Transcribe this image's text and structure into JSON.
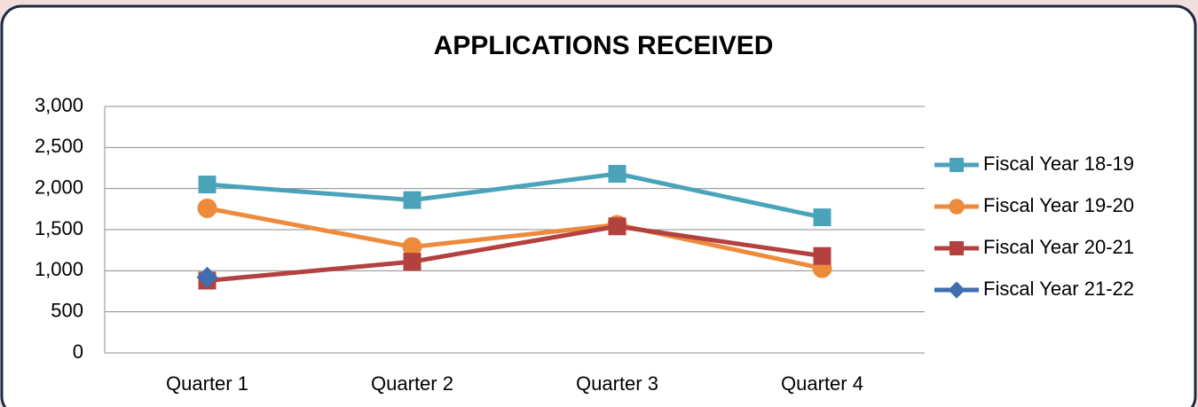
{
  "chart_data": {
    "type": "line",
    "title": "APPLICATIONS RECEIVED",
    "categories": [
      "Quarter 1",
      "Quarter 2",
      "Quarter 3",
      "Quarter 4"
    ],
    "series": [
      {
        "name": "Fiscal Year 18-19",
        "color": "#4aa3b9",
        "marker": "square",
        "values": [
          2050,
          1860,
          2180,
          1650
        ]
      },
      {
        "name": "Fiscal Year 19-20",
        "color": "#ec8b3c",
        "marker": "circle",
        "values": [
          1760,
          1290,
          1560,
          1030
        ]
      },
      {
        "name": "Fiscal Year 20-21",
        "color": "#b3413f",
        "marker": "square",
        "values": [
          880,
          1110,
          1540,
          1180
        ]
      },
      {
        "name": "Fiscal Year 21-22",
        "color": "#3e6db0",
        "marker": "diamond",
        "values": [
          920,
          null,
          null,
          null
        ]
      }
    ],
    "ylim": [
      0,
      3000
    ],
    "yticks": [
      0,
      500,
      {
        "value": 1000,
        "label": "1,000"
      },
      {
        "value": 1500,
        "label": "1,500"
      },
      {
        "value": 2000,
        "label": "2,000"
      },
      {
        "value": 2500,
        "label": "2,500"
      },
      {
        "value": 3000,
        "label": "3,000"
      }
    ],
    "grid": true,
    "legend": "right"
  }
}
